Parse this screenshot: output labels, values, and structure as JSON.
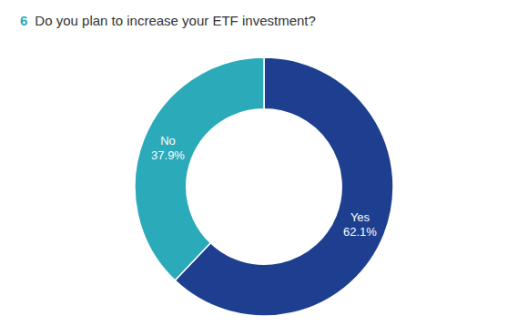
{
  "chart_data": {
    "type": "donut",
    "title": "Do you plan to increase your ETF investment?",
    "annotations": [
      {
        "text": "6",
        "color": "#2baaba"
      }
    ],
    "categories": [
      "Yes",
      "No"
    ],
    "values": [
      62.1,
      37.9
    ],
    "value_labels": [
      "62.1%",
      "37.9%"
    ],
    "colors": [
      "#1e3f8f",
      "#2baaba"
    ],
    "data_labels": true
  }
}
